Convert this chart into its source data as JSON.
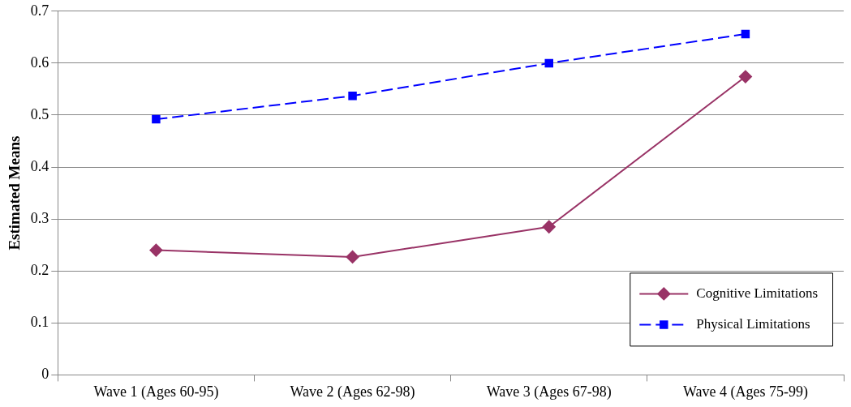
{
  "chart_data": {
    "type": "line",
    "ylabel": "Estimated Means",
    "categories": [
      "Wave 1 (Ages 60-95)",
      "Wave 2 (Ages 62-98)",
      "Wave 3 (Ages 67-98)",
      "Wave 4 (Ages 75-99)"
    ],
    "series": [
      {
        "name": "Cognitive Limitations",
        "color": "#993366",
        "values": [
          0.24,
          0.227,
          0.285,
          0.574
        ],
        "marker": "diamond",
        "line_style": "solid"
      },
      {
        "name": "Physical Limitations",
        "color": "#0000ff",
        "values": [
          0.492,
          0.537,
          0.6,
          0.656
        ],
        "marker": "square",
        "line_style": "dashed"
      }
    ],
    "ylim": [
      0,
      0.7
    ],
    "yticks": [
      0,
      0.1,
      0.2,
      0.3,
      0.4,
      0.5,
      0.6,
      0.7
    ],
    "grid": "y",
    "legend": "bottom right"
  }
}
